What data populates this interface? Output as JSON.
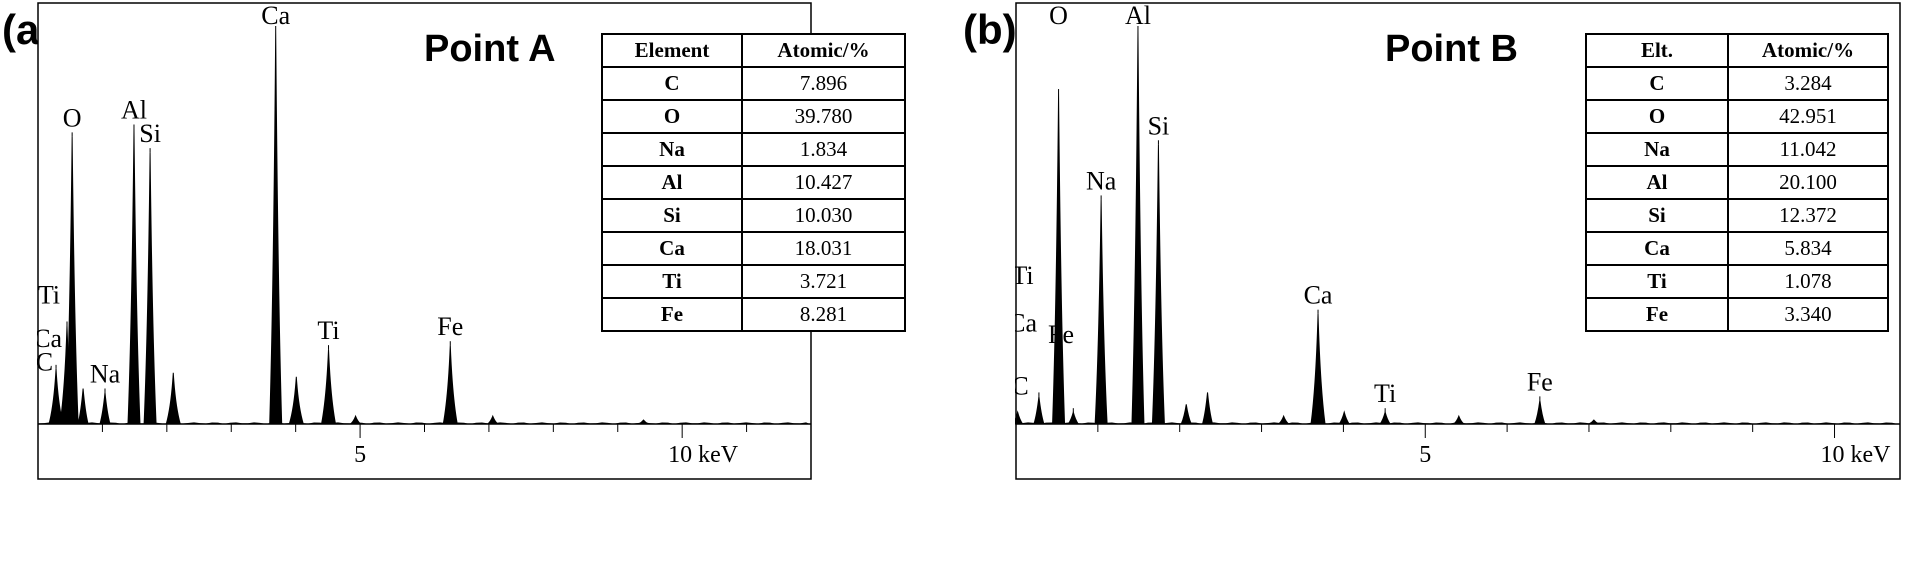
{
  "panels": [
    {
      "letter": "(a)",
      "title": "Point A",
      "table": {
        "headers": [
          "Element",
          "Atomic/%"
        ],
        "rows": [
          [
            "C",
            "7.896"
          ],
          [
            "O",
            "39.780"
          ],
          [
            "Na",
            "1.834"
          ],
          [
            "Al",
            "10.427"
          ],
          [
            "Si",
            "10.030"
          ],
          [
            "Ca",
            "18.031"
          ],
          [
            "Ti",
            "3.721"
          ],
          [
            "Fe",
            "8.281"
          ]
        ]
      },
      "axis": {
        "tick_5": "5",
        "tick_10": "10 keV"
      }
    },
    {
      "letter": "(b)",
      "title": "Point B",
      "table": {
        "headers": [
          "Elt.",
          "Atomic/%"
        ],
        "rows": [
          [
            "C",
            "3.284"
          ],
          [
            "O",
            "42.951"
          ],
          [
            "Na",
            "11.042"
          ],
          [
            "Al",
            "20.100"
          ],
          [
            "Si",
            "12.372"
          ],
          [
            "Ca",
            "5.834"
          ],
          [
            "Ti",
            "1.078"
          ],
          [
            "Fe",
            "3.340"
          ]
        ]
      },
      "axis": {
        "tick_5": "5",
        "tick_10": "10 keV"
      }
    }
  ],
  "chart_data": [
    {
      "type": "area",
      "title": "Point A",
      "xlabel": "keV",
      "xlim": [
        0,
        12
      ],
      "x_ticks": [
        5,
        10
      ],
      "ylim": [
        0,
        100
      ],
      "peak_color": "#000000",
      "peaks": [
        {
          "x": 0.28,
          "h": 14,
          "label": "C"
        },
        {
          "x": 0.45,
          "h": 25,
          "label": "Ti"
        },
        {
          "x": 0.53,
          "h": 73,
          "label": "O"
        },
        {
          "x": 0.7,
          "h": 9,
          "label": ""
        },
        {
          "x": 1.04,
          "h": 8,
          "label": "Na"
        },
        {
          "x": 1.49,
          "h": 75,
          "label": "Al"
        },
        {
          "x": 1.74,
          "h": 69,
          "label": "Si"
        },
        {
          "x": 2.1,
          "h": 13,
          "label": ""
        },
        {
          "x": 3.69,
          "h": 100,
          "label": "Ca"
        },
        {
          "x": 4.01,
          "h": 12,
          "label": ""
        },
        {
          "x": 4.51,
          "h": 19,
          "label": "Ti"
        },
        {
          "x": 4.93,
          "h": 2,
          "label": ""
        },
        {
          "x": 6.4,
          "h": 20,
          "label": "Fe"
        },
        {
          "x": 7.06,
          "h": 2,
          "label": ""
        },
        {
          "x": 9.4,
          "h": 1,
          "label": ""
        }
      ],
      "peak_labels": [
        {
          "text": "O",
          "x": 0.53,
          "h": 73,
          "anchor": "middle"
        },
        {
          "text": "Al",
          "x": 1.49,
          "h": 75,
          "anchor": "middle"
        },
        {
          "text": "Si",
          "x": 1.74,
          "h": 69,
          "anchor": "middle"
        },
        {
          "text": "Ca",
          "x": 3.69,
          "h": 100,
          "anchor": "middle"
        },
        {
          "text": "Ti",
          "x": 4.51,
          "h": 19,
          "anchor": "middle"
        },
        {
          "text": "Fe",
          "x": 6.4,
          "h": 20,
          "anchor": "middle"
        },
        {
          "text": "Na",
          "x": 1.04,
          "h": 8,
          "anchor": "middle"
        },
        {
          "text": "Ti",
          "x": 0.17,
          "h": 28,
          "anchor": "middle"
        },
        {
          "text": "Ca",
          "x": 0.15,
          "h": 17,
          "anchor": "middle"
        },
        {
          "text": "C",
          "x": 0.1,
          "h": 11,
          "anchor": "middle"
        }
      ]
    },
    {
      "type": "area",
      "title": "Point B",
      "xlabel": "keV",
      "xlim": [
        0,
        10.8
      ],
      "x_ticks": [
        5,
        10
      ],
      "ylim": [
        0,
        100
      ],
      "peak_color": "#000000",
      "peaks": [
        {
          "x": 0.02,
          "h": 3,
          "label": ""
        },
        {
          "x": 0.28,
          "h": 7,
          "label": "C"
        },
        {
          "x": 0.52,
          "h": 84,
          "label": "O"
        },
        {
          "x": 0.7,
          "h": 3,
          "label": "Fe"
        },
        {
          "x": 1.04,
          "h": 57,
          "label": "Na"
        },
        {
          "x": 1.49,
          "h": 100,
          "label": "Al"
        },
        {
          "x": 1.74,
          "h": 71,
          "label": "Si"
        },
        {
          "x": 2.08,
          "h": 5,
          "label": ""
        },
        {
          "x": 2.34,
          "h": 8,
          "label": ""
        },
        {
          "x": 3.27,
          "h": 2,
          "label": ""
        },
        {
          "x": 3.69,
          "h": 28,
          "label": "Ca"
        },
        {
          "x": 4.01,
          "h": 3,
          "label": ""
        },
        {
          "x": 4.51,
          "h": 3,
          "label": "Ti"
        },
        {
          "x": 5.41,
          "h": 2,
          "label": ""
        },
        {
          "x": 6.4,
          "h": 6,
          "label": "Fe"
        },
        {
          "x": 7.06,
          "h": 1,
          "label": ""
        }
      ],
      "peak_labels": [
        {
          "text": "O",
          "x": 0.52,
          "h": 100,
          "anchor": "middle"
        },
        {
          "text": "Al",
          "x": 1.49,
          "h": 100,
          "anchor": "middle"
        },
        {
          "text": "Si",
          "x": 1.74,
          "h": 71,
          "anchor": "middle"
        },
        {
          "text": "Na",
          "x": 1.04,
          "h": 57,
          "anchor": "middle"
        },
        {
          "text": "Ca",
          "x": 3.69,
          "h": 28,
          "anchor": "middle"
        },
        {
          "text": "Ti",
          "x": 4.51,
          "h": 3,
          "anchor": "middle"
        },
        {
          "text": "Fe",
          "x": 6.4,
          "h": 6,
          "anchor": "middle"
        },
        {
          "text": "Ti",
          "x": 0.08,
          "h": 33,
          "anchor": "middle"
        },
        {
          "text": "Ca",
          "x": 0.08,
          "h": 21,
          "anchor": "middle"
        },
        {
          "text": "Fe",
          "x": 0.55,
          "h": 18,
          "anchor": "middle"
        },
        {
          "text": "C",
          "x": 0.05,
          "h": 5,
          "anchor": "middle"
        }
      ]
    }
  ]
}
